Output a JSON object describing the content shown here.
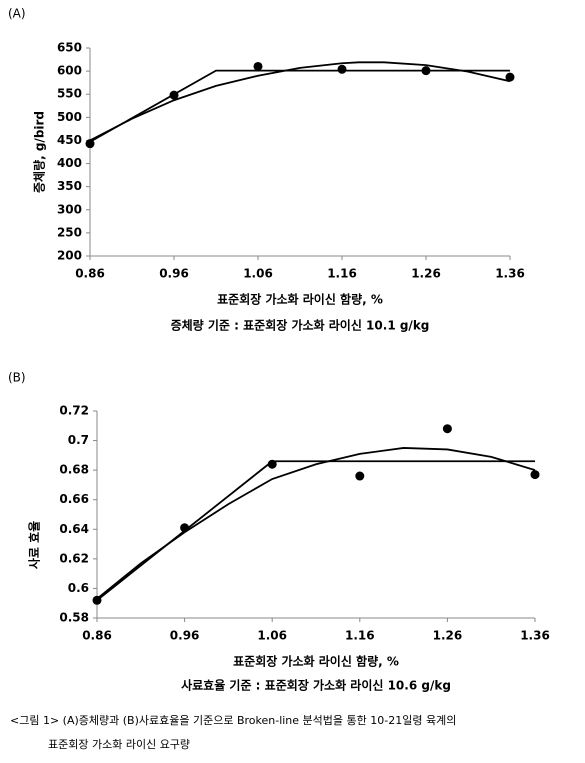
{
  "chart_data": [
    {
      "type": "scatter",
      "panel": "(A)",
      "ylabel": "증체량, g/bird",
      "xlabel": "표준회장 가소화 라이신 함량, %",
      "subtitle": "증체량 기준 : 표준회장 가소화 라이신 10.1 g/kg",
      "xlim": [
        0.86,
        1.36
      ],
      "xticks": [
        0.86,
        0.96,
        1.06,
        1.16,
        1.26,
        1.36
      ],
      "ylim": [
        200,
        650
      ],
      "yticks": [
        200,
        250,
        300,
        350,
        400,
        450,
        500,
        550,
        600,
        650
      ],
      "series": [
        {
          "mode": "markers",
          "color": "#000000",
          "x": [
            0.86,
            0.96,
            1.06,
            1.16,
            1.26,
            1.36
          ],
          "values": [
            443,
            548,
            610,
            604,
            601,
            587
          ]
        },
        {
          "mode": "line",
          "color": "#000000",
          "x": [
            0.86,
            1.01,
            1.36
          ],
          "values": [
            447,
            601,
            601
          ]
        },
        {
          "mode": "line",
          "color": "#000000",
          "x": [
            0.86,
            0.91,
            0.96,
            1.01,
            1.06,
            1.11,
            1.16,
            1.18,
            1.21,
            1.26,
            1.31,
            1.36
          ],
          "values": [
            450,
            497,
            537,
            568,
            590,
            607,
            617,
            619,
            619,
            613,
            599,
            578
          ]
        }
      ]
    },
    {
      "type": "scatter",
      "panel": "(B)",
      "ylabel": "사료 효율",
      "xlabel": "표준회장 가소화 라이신 함량, %",
      "subtitle": "사료효율 기준 : 표준회장 가소화 라이신 10.6 g/kg",
      "xlim": [
        0.86,
        1.36
      ],
      "xticks": [
        0.86,
        0.96,
        1.06,
        1.16,
        1.26,
        1.36
      ],
      "ylim": [
        0.58,
        0.72
      ],
      "yticks": [
        0.58,
        0.6,
        0.62,
        0.64,
        0.66,
        0.68,
        0.7,
        0.72
      ],
      "series": [
        {
          "mode": "markers",
          "color": "#000000",
          "x": [
            0.86,
            0.96,
            1.06,
            1.16,
            1.26,
            1.36
          ],
          "values": [
            0.592,
            0.641,
            0.684,
            0.676,
            0.708,
            0.677
          ]
        },
        {
          "mode": "line",
          "color": "#000000",
          "x": [
            0.86,
            1.06,
            1.36
          ],
          "values": [
            0.592,
            0.686,
            0.686
          ]
        },
        {
          "mode": "line",
          "color": "#000000",
          "x": [
            0.86,
            0.91,
            0.96,
            1.01,
            1.06,
            1.11,
            1.16,
            1.21,
            1.26,
            1.31,
            1.36
          ],
          "values": [
            0.593,
            0.617,
            0.638,
            0.657,
            0.674,
            0.684,
            0.691,
            0.695,
            0.694,
            0.689,
            0.68
          ]
        }
      ]
    }
  ],
  "caption": [
    "<그림 1> (A)증체량과 (B)사료효율을 기준으로 Broken-line 분석법을 통한 10-21일령 육계의",
    "표준회장 가소화 라이신 요구량"
  ]
}
